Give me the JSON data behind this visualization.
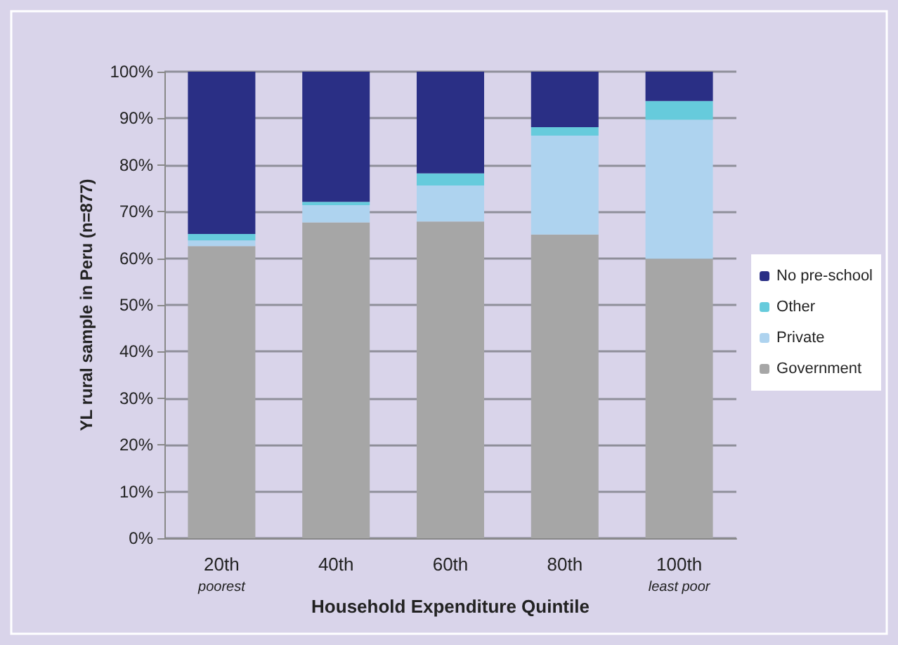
{
  "chart_data": {
    "type": "bar",
    "stacked": true,
    "xlabel": "Household Expenditure Quintile",
    "ylabel": "YL rural sample in Peru (n=877)",
    "categories": [
      "20th",
      "40th",
      "60th",
      "80th",
      "100th"
    ],
    "series": [
      {
        "name": "Government",
        "color": "#a6a6a6",
        "values": [
          62.6,
          67.7,
          67.9,
          65.1,
          59.9
        ]
      },
      {
        "name": "Private",
        "color": "#aed3ef",
        "values": [
          1.2,
          3.7,
          7.7,
          21.2,
          29.8
        ]
      },
      {
        "name": "Other",
        "color": "#66cbdc",
        "values": [
          1.4,
          0.7,
          2.6,
          1.8,
          4.0
        ]
      },
      {
        "name": "No pre-school",
        "color": "#2a2f85",
        "values": [
          34.8,
          27.9,
          21.8,
          11.9,
          6.3
        ]
      }
    ],
    "ylim": [
      0,
      100
    ],
    "yticks": [
      {
        "value": 0,
        "label": "0%"
      },
      {
        "value": 10,
        "label": "10%"
      },
      {
        "value": 20,
        "label": "20%"
      },
      {
        "value": 30,
        "label": "30%"
      },
      {
        "value": 40,
        "label": "40%"
      },
      {
        "value": 50,
        "label": "50%"
      },
      {
        "value": 60,
        "label": "60%"
      },
      {
        "value": 70,
        "label": "70%"
      },
      {
        "value": 80,
        "label": "80%"
      },
      {
        "value": 90,
        "label": "90%"
      },
      {
        "value": 100,
        "label": "100%"
      }
    ],
    "grid": "y",
    "legend": "right",
    "annotations": [
      "poorest",
      "least poor"
    ]
  }
}
